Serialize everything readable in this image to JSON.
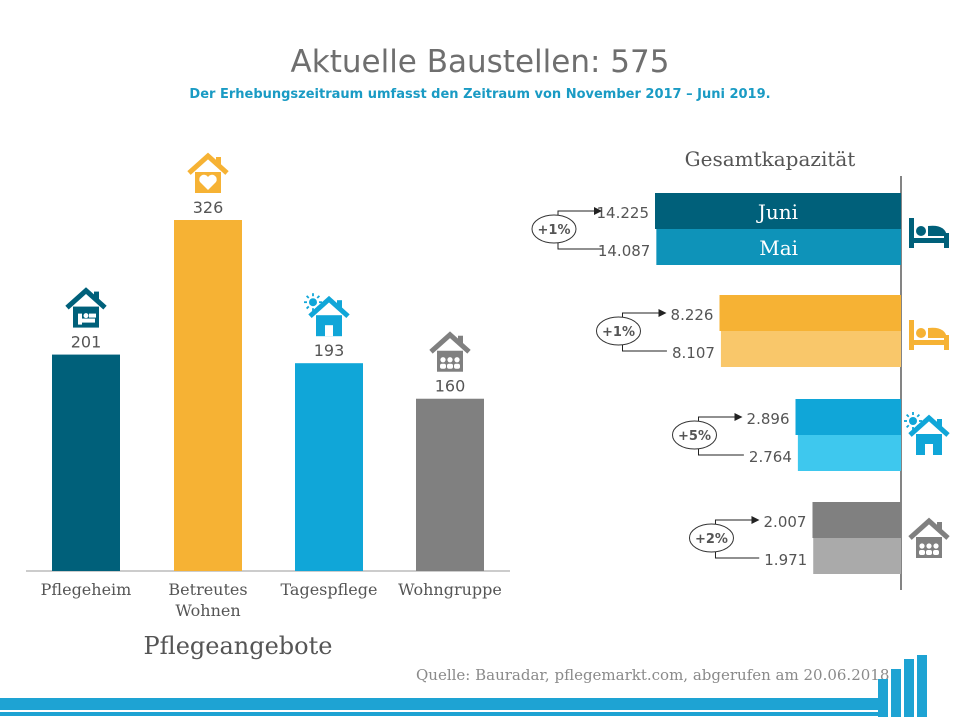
{
  "title": "Aktuelle Baustellen: 575",
  "subtitle": "Der Erhebungszeitraum umfasst den Zeitraum von November 2017 – Juni 2019.",
  "source": "Quelle: Bauradar, pflegemarkt.com, abgerufen am 20.06.2018",
  "colors": {
    "pflegeheim": "#00607a",
    "betreutes": "#f6b234",
    "tagespflege": "#10a6d8",
    "wohngruppe": "#808080"
  },
  "chart_data": [
    {
      "type": "bar",
      "title": "Pflegeangebote",
      "categories": [
        "Pflegeheim",
        "Betreutes Wohnen",
        "Tagespflege",
        "Wohngruppe"
      ],
      "category_lines": [
        [
          "Pflegeheim"
        ],
        [
          "Betreutes",
          "Wohnen"
        ],
        [
          "Tagespflege"
        ],
        [
          "Wohngruppe"
        ]
      ],
      "values": [
        201,
        326,
        193,
        160
      ],
      "colors": [
        "#00607a",
        "#f6b234",
        "#10a6d8",
        "#808080"
      ],
      "icons": [
        "house-bed-icon",
        "house-heart-icon",
        "house-sun-icon",
        "house-people-icon"
      ],
      "ylim": [
        0,
        340
      ]
    },
    {
      "type": "bar",
      "orientation": "horizontal",
      "title": "Gesamtkapazität",
      "series": [
        {
          "name": "Juni",
          "values": [
            14225,
            8226,
            2896,
            2007
          ],
          "labels": [
            "14.225",
            "8.226",
            "2.896",
            "2.007"
          ],
          "colors": [
            "#00607a",
            "#f6b234",
            "#10a6d8",
            "#808080"
          ]
        },
        {
          "name": "Mai",
          "values": [
            14087,
            8107,
            2764,
            1971
          ],
          "labels": [
            "14.087",
            "8.107",
            "2.764",
            "1.971"
          ],
          "colors": [
            "#0e93b9",
            "#f9c76a",
            "#3ec8ee",
            "#aaaaaa"
          ]
        }
      ],
      "changes": [
        "+1%",
        "+1%",
        "+5%",
        "+2%"
      ],
      "icons": [
        "bed-icon",
        "bed-icon",
        "house-sun-icon",
        "house-people-icon"
      ]
    }
  ]
}
